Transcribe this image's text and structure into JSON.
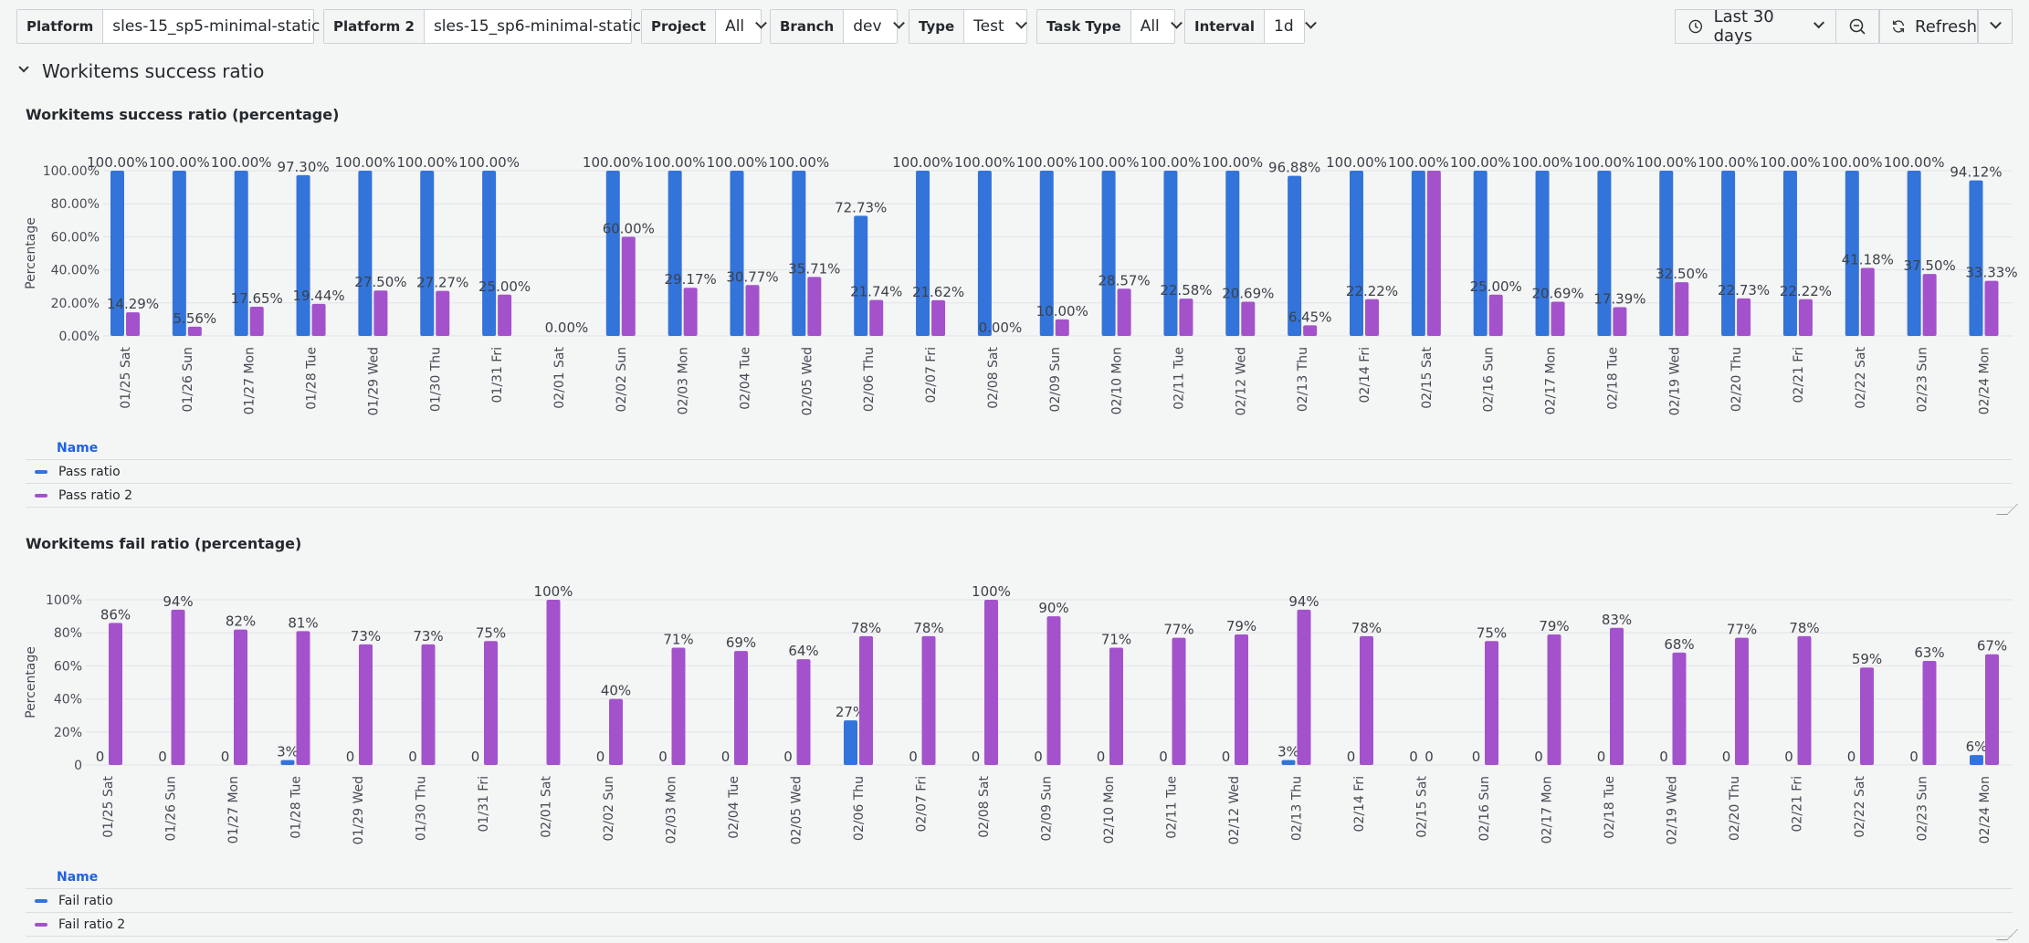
{
  "toolbar": {
    "vars": [
      {
        "label": "Platform",
        "value": "sles-15_sp5-minimal-static"
      },
      {
        "label": "Platform 2",
        "value": "sles-15_sp6-minimal-static"
      },
      {
        "label": "Project",
        "value": "All"
      },
      {
        "label": "Branch",
        "value": "dev"
      },
      {
        "label": "Type",
        "value": "Test"
      },
      {
        "label": "Task Type",
        "value": "All"
      },
      {
        "label": "Interval",
        "value": "1d"
      }
    ],
    "time_range": "Last 30 days",
    "refresh": "Refresh"
  },
  "row": {
    "title": "Workitems success ratio"
  },
  "categories": [
    "01/25 Sat",
    "01/26 Sun",
    "01/27 Mon",
    "01/28 Tue",
    "01/29 Wed",
    "01/30 Thu",
    "01/31 Fri",
    "02/01 Sat",
    "02/02 Sun",
    "02/03 Mon",
    "02/04 Tue",
    "02/05 Wed",
    "02/06 Thu",
    "02/07 Fri",
    "02/08 Sat",
    "02/09 Sun",
    "02/10 Mon",
    "02/11 Tue",
    "02/12 Wed",
    "02/13 Thu",
    "02/14 Fri",
    "02/15 Sat",
    "02/16 Sun",
    "02/17 Mon",
    "02/18 Tue",
    "02/19 Wed",
    "02/20 Thu",
    "02/21 Fri",
    "02/22 Sat",
    "02/23 Sun",
    "02/24 Mon"
  ],
  "colors": {
    "series1": "#3274d9",
    "series2": "#a352cc"
  },
  "chart_data": [
    {
      "type": "bar",
      "title": "Workitems success ratio (percentage)",
      "ylabel": "Percentage",
      "ylim": [
        0,
        100
      ],
      "yticks": [
        "0.00%",
        "20.00%",
        "40.00%",
        "60.00%",
        "80.00%",
        "100.00%"
      ],
      "legend_header": "Name",
      "series": [
        {
          "name": "Pass ratio",
          "values": [
            100,
            100,
            100,
            97.3,
            100,
            100,
            100,
            null,
            100,
            100,
            100,
            100,
            72.73,
            100,
            100,
            100,
            100,
            100,
            100,
            96.88,
            100,
            100,
            100,
            100,
            100,
            100,
            100,
            100,
            100,
            100,
            94.12
          ],
          "labels": [
            "100.00%",
            "100.00%",
            "100.00%",
            "97.30%",
            "100.00%",
            "100.00%",
            "100.00%",
            "",
            "100.00%",
            "100.00%",
            "100.00%",
            "100.00%",
            "72.73%",
            "100.00%",
            "100.00%",
            "100.00%",
            "100.00%",
            "100.00%",
            "100.00%",
            "96.88%",
            "100.00%",
            "100.00%",
            "100.00%",
            "100.00%",
            "100.00%",
            "100.00%",
            "100.00%",
            "100.00%",
            "100.00%",
            "100.00%",
            "94.12%"
          ]
        },
        {
          "name": "Pass ratio 2",
          "values": [
            14.29,
            5.56,
            17.65,
            19.44,
            27.5,
            27.27,
            25.0,
            0,
            60.0,
            29.17,
            30.77,
            35.71,
            21.74,
            21.62,
            0,
            10.0,
            28.57,
            22.58,
            20.69,
            6.45,
            22.22,
            100,
            25.0,
            20.69,
            17.39,
            32.5,
            22.73,
            22.22,
            41.18,
            37.5,
            33.33
          ],
          "labels": [
            "14.29%",
            "5.56%",
            "17.65%",
            "19.44%",
            "27.50%",
            "27.27%",
            "25.00%",
            "0.00%",
            "60.00%",
            "29.17%",
            "30.77%",
            "35.71%",
            "21.74%",
            "21.62%",
            "0.00%",
            "10.00%",
            "28.57%",
            "22.58%",
            "20.69%",
            "6.45%",
            "22.22%",
            "",
            "25.00%",
            "20.69%",
            "17.39%",
            "32.50%",
            "22.73%",
            "22.22%",
            "41.18%",
            "37.50%",
            "33.33%"
          ]
        }
      ]
    },
    {
      "type": "bar",
      "title": "Workitems fail ratio (percentage)",
      "ylabel": "Percentage",
      "ylim": [
        0,
        100
      ],
      "yticks": [
        "0",
        "20%",
        "40%",
        "60%",
        "80%",
        "100%"
      ],
      "legend_header": "Name",
      "series": [
        {
          "name": "Fail ratio",
          "values": [
            0,
            0,
            0,
            3,
            0,
            0,
            0,
            null,
            0,
            0,
            0,
            0,
            27,
            0,
            0,
            0,
            0,
            0,
            0,
            3,
            0,
            0,
            0,
            0,
            0,
            0,
            0,
            0,
            0,
            0,
            6
          ],
          "labels": [
            "0",
            "0",
            "0",
            "3%",
            "0",
            "0",
            "0",
            "",
            "0",
            "0",
            "0",
            "0",
            "27%",
            "0",
            "0",
            "0",
            "0",
            "0",
            "0",
            "3%",
            "0",
            "0",
            "0",
            "0",
            "0",
            "0",
            "0",
            "0",
            "0",
            "0",
            "6%"
          ]
        },
        {
          "name": "Fail ratio 2",
          "values": [
            86,
            94,
            82,
            81,
            73,
            73,
            75,
            100,
            40,
            71,
            69,
            64,
            78,
            78,
            100,
            90,
            71,
            77,
            79,
            94,
            78,
            0,
            75,
            79,
            83,
            68,
            77,
            78,
            59,
            63,
            67
          ],
          "labels": [
            "86%",
            "94%",
            "82%",
            "81%",
            "73%",
            "73%",
            "75%",
            "100%",
            "40%",
            "71%",
            "69%",
            "64%",
            "78%",
            "78%",
            "100%",
            "90%",
            "71%",
            "77%",
            "79%",
            "94%",
            "78%",
            "0",
            "75%",
            "79%",
            "83%",
            "68%",
            "77%",
            "78%",
            "59%",
            "63%",
            "67%"
          ]
        }
      ]
    }
  ]
}
